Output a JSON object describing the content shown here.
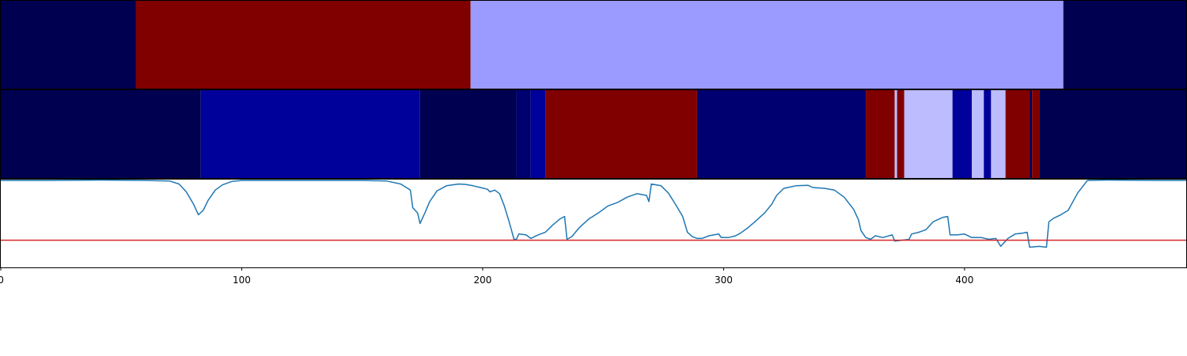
{
  "chart_data": [
    {
      "type": "heatmap",
      "x_range": [
        0,
        492
      ],
      "segments": [
        {
          "start": 0,
          "end": 56,
          "color": "#000050"
        },
        {
          "start": 56,
          "end": 195,
          "color": "#800000"
        },
        {
          "start": 195,
          "end": 441,
          "color": "#9a9aff"
        },
        {
          "start": 441,
          "end": 492,
          "color": "#000050"
        }
      ]
    },
    {
      "type": "heatmap",
      "x_range": [
        0,
        492
      ],
      "segments": [
        {
          "start": 0,
          "end": 83,
          "color": "#000050"
        },
        {
          "start": 83,
          "end": 174,
          "color": "#00009a"
        },
        {
          "start": 174,
          "end": 214,
          "color": "#000050"
        },
        {
          "start": 214,
          "end": 220,
          "color": "#000070"
        },
        {
          "start": 220,
          "end": 226,
          "color": "#00009a"
        },
        {
          "start": 226,
          "end": 289,
          "color": "#800000"
        },
        {
          "start": 289,
          "end": 359,
          "color": "#000070"
        },
        {
          "start": 359,
          "end": 371,
          "color": "#800000"
        },
        {
          "start": 371,
          "end": 372,
          "color": "#bcbcff"
        },
        {
          "start": 372,
          "end": 375,
          "color": "#800000"
        },
        {
          "start": 375,
          "end": 395,
          "color": "#bcbcff"
        },
        {
          "start": 395,
          "end": 403,
          "color": "#00009a"
        },
        {
          "start": 403,
          "end": 408,
          "color": "#bcbcff"
        },
        {
          "start": 408,
          "end": 411,
          "color": "#00009a"
        },
        {
          "start": 411,
          "end": 417,
          "color": "#bcbcff"
        },
        {
          "start": 417,
          "end": 427,
          "color": "#800000"
        },
        {
          "start": 427,
          "end": 428,
          "color": "#000050"
        },
        {
          "start": 428,
          "end": 431,
          "color": "#800000"
        },
        {
          "start": 431,
          "end": 492,
          "color": "#000050"
        }
      ]
    },
    {
      "type": "line",
      "x_range": [
        0,
        492
      ],
      "y_range": [
        0,
        1
      ],
      "xticks": [
        0,
        100,
        200,
        300,
        400
      ],
      "series": [
        {
          "color": "#1f77b4",
          "points": [
            [
              0,
              0.99
            ],
            [
              20,
              0.99
            ],
            [
              42,
              0.995
            ],
            [
              60,
              0.99
            ],
            [
              70,
              0.985
            ],
            [
              74,
              0.95
            ],
            [
              77,
              0.86
            ],
            [
              80,
              0.72
            ],
            [
              82,
              0.6
            ],
            [
              84,
              0.65
            ],
            [
              86,
              0.76
            ],
            [
              89,
              0.88
            ],
            [
              92,
              0.94
            ],
            [
              96,
              0.98
            ],
            [
              100,
              0.99
            ],
            [
              120,
              0.99
            ],
            [
              150,
              0.99
            ],
            [
              160,
              0.985
            ],
            [
              166,
              0.95
            ],
            [
              170,
              0.88
            ],
            [
              171,
              0.68
            ],
            [
              173,
              0.62
            ],
            [
              174,
              0.5
            ],
            [
              176,
              0.62
            ],
            [
              178,
              0.75
            ],
            [
              181,
              0.87
            ],
            [
              185,
              0.93
            ],
            [
              190,
              0.95
            ],
            [
              193,
              0.945
            ],
            [
              196,
              0.93
            ],
            [
              199,
              0.91
            ],
            [
              202,
              0.89
            ],
            [
              203,
              0.86
            ],
            [
              205,
              0.88
            ],
            [
              207,
              0.84
            ],
            [
              209,
              0.7
            ],
            [
              211,
              0.52
            ],
            [
              212,
              0.42
            ],
            [
              213,
              0.32
            ],
            [
              214,
              0.32
            ],
            [
              215,
              0.38
            ],
            [
              218,
              0.37
            ],
            [
              220,
              0.33
            ],
            [
              223,
              0.37
            ],
            [
              226,
              0.4
            ],
            [
              229,
              0.48
            ],
            [
              232,
              0.55
            ],
            [
              234,
              0.58
            ],
            [
              235,
              0.32
            ],
            [
              237,
              0.35
            ],
            [
              240,
              0.45
            ],
            [
              244,
              0.55
            ],
            [
              248,
              0.62
            ],
            [
              252,
              0.7
            ],
            [
              256,
              0.74
            ],
            [
              260,
              0.8
            ],
            [
              264,
              0.84
            ],
            [
              268,
              0.82
            ],
            [
              269,
              0.75
            ],
            [
              270,
              0.95
            ],
            [
              274,
              0.93
            ],
            [
              277,
              0.85
            ],
            [
              280,
              0.72
            ],
            [
              283,
              0.58
            ],
            [
              285,
              0.4
            ],
            [
              287,
              0.35
            ],
            [
              289,
              0.33
            ],
            [
              291,
              0.33
            ],
            [
              294,
              0.36
            ],
            [
              298,
              0.38
            ],
            [
              299,
              0.34
            ],
            [
              302,
              0.34
            ],
            [
              305,
              0.36
            ],
            [
              307,
              0.39
            ],
            [
              310,
              0.45
            ],
            [
              313,
              0.52
            ],
            [
              317,
              0.62
            ],
            [
              320,
              0.72
            ],
            [
              322,
              0.82
            ],
            [
              325,
              0.9
            ],
            [
              330,
              0.93
            ],
            [
              335,
              0.935
            ],
            [
              337,
              0.91
            ],
            [
              342,
              0.9
            ],
            [
              346,
              0.88
            ],
            [
              350,
              0.8
            ],
            [
              354,
              0.66
            ],
            [
              356,
              0.54
            ],
            [
              357,
              0.42
            ],
            [
              359,
              0.34
            ],
            [
              361,
              0.32
            ],
            [
              363,
              0.36
            ],
            [
              366,
              0.34
            ],
            [
              370,
              0.37
            ],
            [
              371,
              0.3
            ],
            [
              374,
              0.31
            ],
            [
              377,
              0.32
            ],
            [
              378,
              0.38
            ],
            [
              381,
              0.4
            ],
            [
              384,
              0.43
            ],
            [
              387,
              0.52
            ],
            [
              391,
              0.57
            ],
            [
              393,
              0.58
            ],
            [
              394,
              0.37
            ],
            [
              397,
              0.37
            ],
            [
              400,
              0.38
            ],
            [
              403,
              0.34
            ],
            [
              407,
              0.34
            ],
            [
              410,
              0.32
            ],
            [
              413,
              0.33
            ],
            [
              415,
              0.24
            ],
            [
              418,
              0.33
            ],
            [
              421,
              0.38
            ],
            [
              424,
              0.39
            ],
            [
              426,
              0.4
            ],
            [
              427,
              0.23
            ],
            [
              431,
              0.24
            ],
            [
              434,
              0.23
            ],
            [
              435,
              0.52
            ],
            [
              437,
              0.56
            ],
            [
              440,
              0.6
            ],
            [
              443,
              0.65
            ],
            [
              445,
              0.75
            ],
            [
              447,
              0.85
            ],
            [
              449,
              0.92
            ],
            [
              451,
              0.99
            ],
            [
              460,
              0.995
            ],
            [
              480,
              0.99
            ],
            [
              492,
              0.99
            ]
          ]
        }
      ],
      "threshold": {
        "value": 0.31,
        "color": "#d62728"
      }
    }
  ]
}
